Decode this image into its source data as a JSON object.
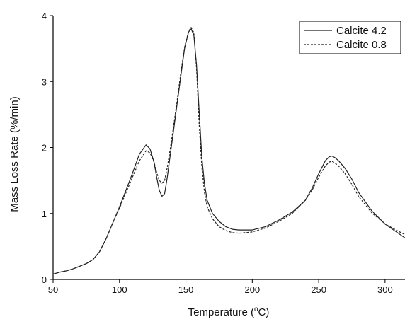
{
  "chart_data": {
    "type": "line",
    "xlabel": "Temperature (°C)",
    "xlabel_parts": {
      "prefix": "Temperature (",
      "sup": "o",
      "suffix": "C)"
    },
    "ylabel": "Mass Loss Rate (%/min)",
    "xlim": [
      50,
      315
    ],
    "ylim": [
      0,
      4
    ],
    "x_ticks": [
      50,
      100,
      150,
      200,
      250,
      300
    ],
    "y_ticks": [
      0,
      1,
      2,
      3,
      4
    ],
    "grid": false,
    "legend_position": "top-right",
    "series": [
      {
        "name": "Calcite 4.2",
        "style": "solid",
        "color": "#222222",
        "x": [
          50,
          55,
          60,
          65,
          70,
          75,
          80,
          85,
          90,
          95,
          100,
          105,
          110,
          115,
          120,
          123,
          126,
          128,
          130,
          132,
          134,
          136,
          138,
          140,
          143,
          146,
          149,
          152,
          154,
          156,
          158,
          160,
          162,
          164,
          166,
          170,
          175,
          180,
          185,
          190,
          200,
          210,
          220,
          230,
          240,
          245,
          250,
          255,
          258,
          260,
          262,
          265,
          270,
          275,
          280,
          290,
          300,
          310,
          315
        ],
        "y": [
          0.08,
          0.11,
          0.13,
          0.16,
          0.2,
          0.24,
          0.3,
          0.42,
          0.62,
          0.86,
          1.1,
          1.36,
          1.62,
          1.9,
          2.04,
          1.98,
          1.78,
          1.55,
          1.35,
          1.26,
          1.3,
          1.55,
          1.85,
          2.15,
          2.6,
          3.05,
          3.5,
          3.75,
          3.8,
          3.7,
          3.25,
          2.55,
          1.85,
          1.45,
          1.2,
          1.0,
          0.88,
          0.8,
          0.76,
          0.75,
          0.75,
          0.8,
          0.9,
          1.02,
          1.2,
          1.38,
          1.6,
          1.8,
          1.86,
          1.87,
          1.85,
          1.8,
          1.68,
          1.52,
          1.32,
          1.04,
          0.84,
          0.7,
          0.63
        ]
      },
      {
        "name": "Calcite 0.8",
        "style": "dashed",
        "color": "#222222",
        "x": [
          50,
          55,
          60,
          65,
          70,
          75,
          80,
          85,
          90,
          95,
          100,
          105,
          110,
          115,
          120,
          123,
          126,
          128,
          130,
          132,
          134,
          136,
          138,
          140,
          143,
          146,
          149,
          152,
          154,
          156,
          158,
          160,
          162,
          164,
          166,
          170,
          175,
          180,
          185,
          190,
          200,
          210,
          220,
          230,
          240,
          245,
          250,
          255,
          258,
          260,
          262,
          265,
          270,
          275,
          280,
          290,
          300,
          310,
          315
        ],
        "y": [
          0.08,
          0.11,
          0.13,
          0.16,
          0.2,
          0.24,
          0.3,
          0.42,
          0.62,
          0.86,
          1.08,
          1.32,
          1.56,
          1.8,
          1.95,
          1.92,
          1.78,
          1.62,
          1.5,
          1.46,
          1.5,
          1.7,
          1.95,
          2.22,
          2.65,
          3.1,
          3.52,
          3.76,
          3.82,
          3.74,
          3.2,
          2.35,
          1.7,
          1.32,
          1.1,
          0.92,
          0.8,
          0.74,
          0.71,
          0.7,
          0.72,
          0.78,
          0.88,
          1.0,
          1.2,
          1.35,
          1.55,
          1.72,
          1.78,
          1.79,
          1.77,
          1.72,
          1.6,
          1.44,
          1.26,
          1.01,
          0.84,
          0.73,
          0.68
        ]
      }
    ]
  }
}
